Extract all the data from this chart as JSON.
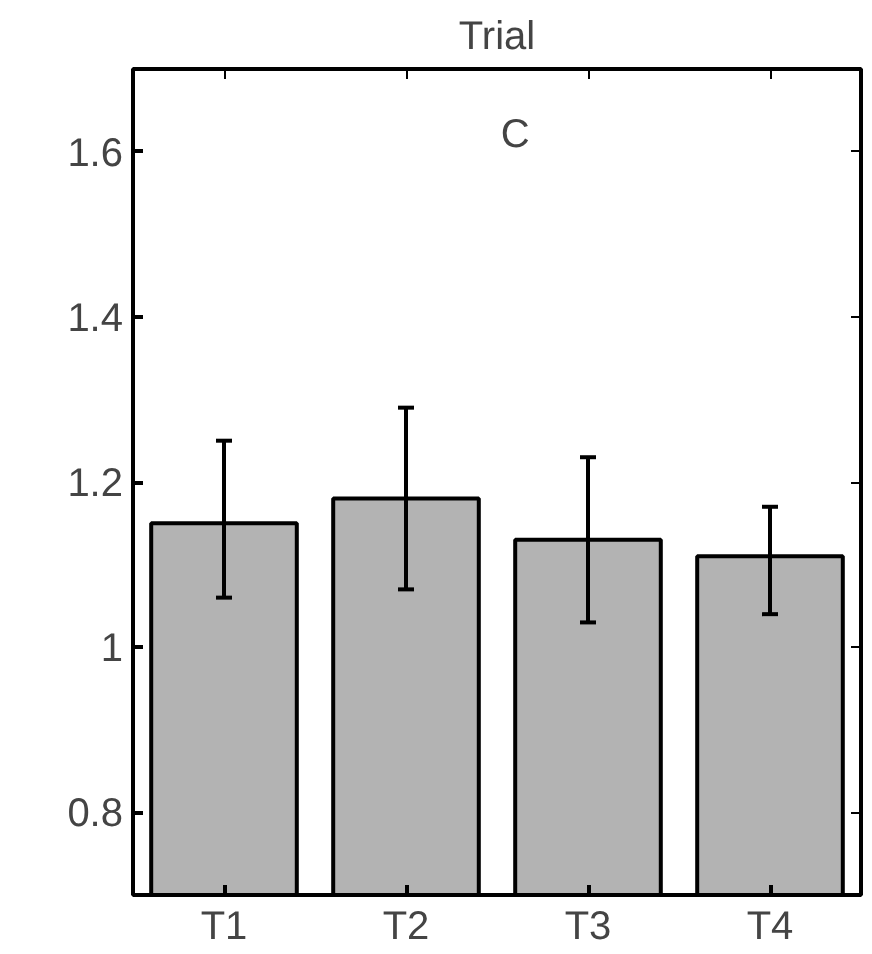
{
  "chart_data": {
    "type": "bar",
    "title": "Trial",
    "categories": [
      "T1",
      "T2",
      "T3",
      "T4"
    ],
    "values": [
      1.15,
      1.18,
      1.13,
      1.11
    ],
    "errors": [
      [
        1.06,
        1.25
      ],
      [
        1.07,
        1.29
      ],
      [
        1.03,
        1.23
      ],
      [
        1.04,
        1.17
      ]
    ],
    "color": "#b3b3b3",
    "ylim": [
      0.7,
      1.7
    ],
    "yticks": [
      0.8,
      1,
      1.2,
      1.4,
      1.6
    ],
    "annotations": [
      "C"
    ],
    "grid": false
  }
}
